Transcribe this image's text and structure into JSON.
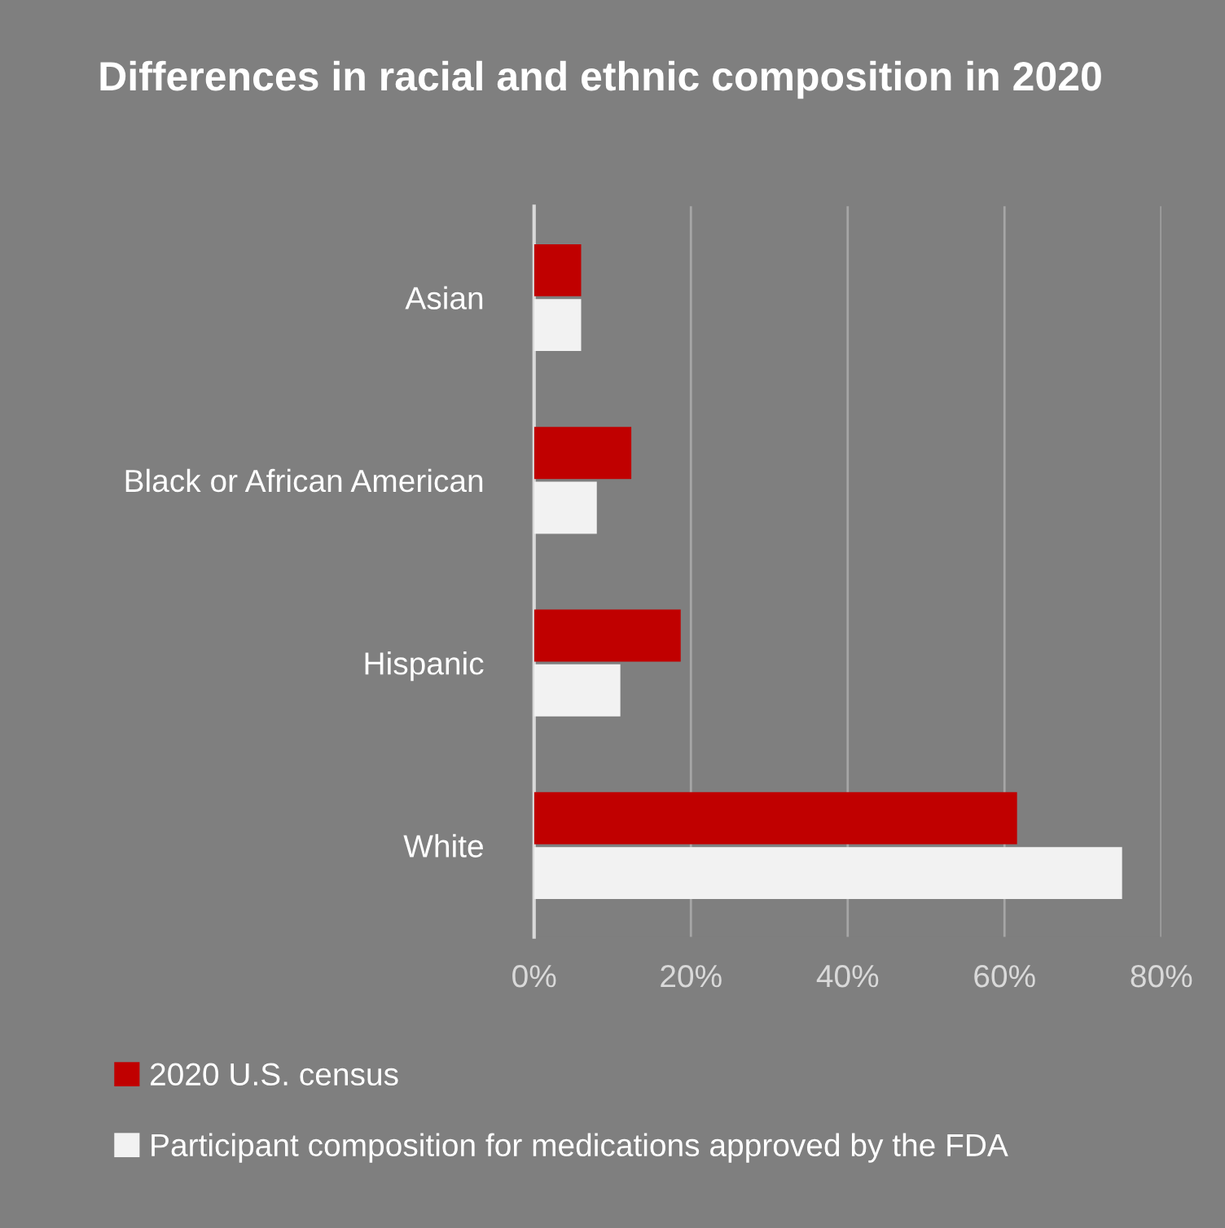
{
  "chart_data": {
    "type": "bar",
    "orientation": "horizontal",
    "title": "Differences in racial and ethnic composition in 2020",
    "categories": [
      "Asian",
      "Black or African American",
      "Hispanic",
      "White"
    ],
    "series": [
      {
        "name": "2020 U.S. census",
        "color": "#c00000",
        "values": [
          6,
          12.4,
          18.7,
          61.6
        ]
      },
      {
        "name": "Participant composition for medications approved by the FDA",
        "color": "#f2f2f2",
        "values": [
          6,
          8,
          11,
          75
        ]
      }
    ],
    "xlim": [
      0,
      80
    ],
    "xticks": [
      {
        "value": 0,
        "label": "0%"
      },
      {
        "value": 20,
        "label": "20%"
      },
      {
        "value": 40,
        "label": "40%"
      },
      {
        "value": 60,
        "label": "60%"
      },
      {
        "value": 80,
        "label": "80%"
      }
    ],
    "grid": "x",
    "legend": "bottom"
  }
}
